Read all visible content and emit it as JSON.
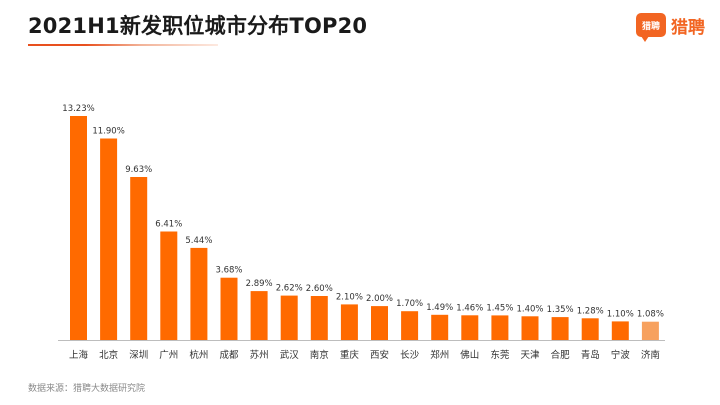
{
  "header": {
    "title": "2021H1新发职位城市分布TOP20",
    "logo_badge": "猎聘",
    "logo_text": "猎聘"
  },
  "footer": {
    "source": "数据来源：猎聘大数据研究院"
  },
  "colors": {
    "bar": "#ff6a00",
    "last_bar": "#f7a15e",
    "brand": "#f26522"
  },
  "chart_data": {
    "type": "bar",
    "title": "2021H1新发职位城市分布TOP20",
    "xlabel": "",
    "ylabel": "",
    "ylim": [
      0,
      14
    ],
    "grid": false,
    "categories": [
      "上海",
      "北京",
      "深圳",
      "广州",
      "杭州",
      "成都",
      "苏州",
      "武汉",
      "南京",
      "重庆",
      "西安",
      "长沙",
      "郑州",
      "佛山",
      "东莞",
      "天津",
      "合肥",
      "青岛",
      "宁波",
      "济南"
    ],
    "values": [
      13.23,
      11.9,
      9.63,
      6.41,
      5.44,
      3.68,
      2.89,
      2.62,
      2.6,
      2.1,
      2.0,
      1.7,
      1.49,
      1.46,
      1.45,
      1.4,
      1.35,
      1.28,
      1.1,
      1.08
    ],
    "value_labels": [
      "13.23%",
      "11.90%",
      "9.63%",
      "6.41%",
      "5.44%",
      "3.68%",
      "2.89%",
      "2.62%",
      "2.60%",
      "2.10%",
      "2.00%",
      "1.70%",
      "1.49%",
      "1.46%",
      "1.45%",
      "1.40%",
      "1.35%",
      "1.28%",
      "1.10%",
      "1.08%"
    ]
  }
}
